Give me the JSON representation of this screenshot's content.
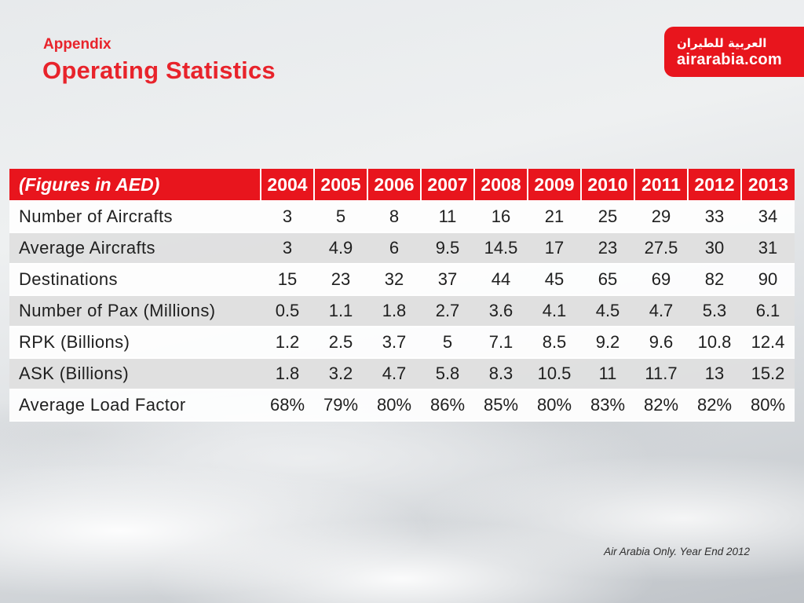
{
  "slide": {
    "kicker": "Appendix",
    "title": "Operating Statistics",
    "footnote": "Air Arabia Only. Year End 2012"
  },
  "logo": {
    "arabic_text": "العربية للطيران",
    "site_text": "airarabia.com"
  },
  "colors": {
    "brand_red": "#E8151D",
    "title_red": "#E8232B",
    "row_shade": "#DFDFDF"
  },
  "table": {
    "header": [
      "(Figures in AED)",
      "2004",
      "2005",
      "2006",
      "2007",
      "2008",
      "2009",
      "2010",
      "2011",
      "2012",
      "2013"
    ],
    "rows": [
      {
        "label": "Number of Aircrafts",
        "values": [
          "3",
          "5",
          "8",
          "11",
          "16",
          "21",
          "25",
          "29",
          "33",
          "34"
        ]
      },
      {
        "label": "Average Aircrafts",
        "values": [
          "3",
          "4.9",
          "6",
          "9.5",
          "14.5",
          "17",
          "23",
          "27.5",
          "30",
          "31"
        ]
      },
      {
        "label": "Destinations",
        "values": [
          "15",
          "23",
          "32",
          "37",
          "44",
          "45",
          "65",
          "69",
          "82",
          "90"
        ]
      },
      {
        "label": "Number of Pax (Millions)",
        "values": [
          "0.5",
          "1.1",
          "1.8",
          "2.7",
          "3.6",
          "4.1",
          "4.5",
          "4.7",
          "5.3",
          "6.1"
        ]
      },
      {
        "label": "RPK (Billions)",
        "values": [
          "1.2",
          "2.5",
          "3.7",
          "5",
          "7.1",
          "8.5",
          "9.2",
          "9.6",
          "10.8",
          "12.4"
        ]
      },
      {
        "label": "ASK (Billions)",
        "values": [
          "1.8",
          "3.2",
          "4.7",
          "5.8",
          "8.3",
          "10.5",
          "11",
          "11.7",
          "13",
          "15.2"
        ]
      },
      {
        "label": "Average Load Factor",
        "values": [
          "68%",
          "79%",
          "80%",
          "86%",
          "85%",
          "80%",
          "83%",
          "82%",
          "82%",
          "80%"
        ]
      }
    ]
  }
}
